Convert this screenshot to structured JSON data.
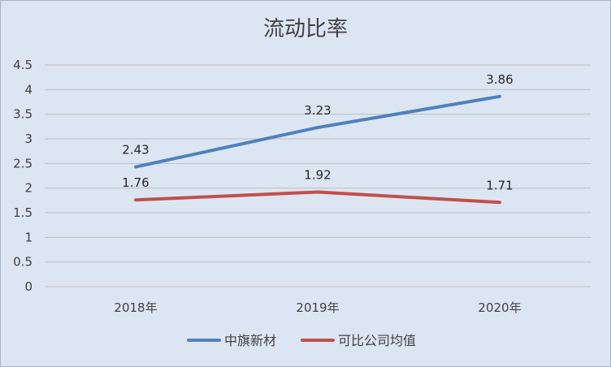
{
  "chart_data": {
    "type": "line",
    "title": "流动比率",
    "categories": [
      "2018年",
      "2019年",
      "2020年"
    ],
    "ylim": [
      0,
      4.5
    ],
    "yticks": [
      "0",
      "0.5",
      "1",
      "1.5",
      "2",
      "2.5",
      "3",
      "3.5",
      "4",
      "4.5"
    ],
    "grid": true,
    "legend_position": "bottom",
    "series": [
      {
        "name": "中旗新材",
        "values": [
          2.43,
          3.23,
          3.86
        ],
        "labels": [
          "2.43",
          "3.23",
          "3.86"
        ],
        "color": "#4f81bd"
      },
      {
        "name": "可比公司均值",
        "values": [
          1.76,
          1.92,
          1.71
        ],
        "labels": [
          "1.76",
          "1.92",
          "1.71"
        ],
        "color": "#c0504d"
      }
    ]
  }
}
